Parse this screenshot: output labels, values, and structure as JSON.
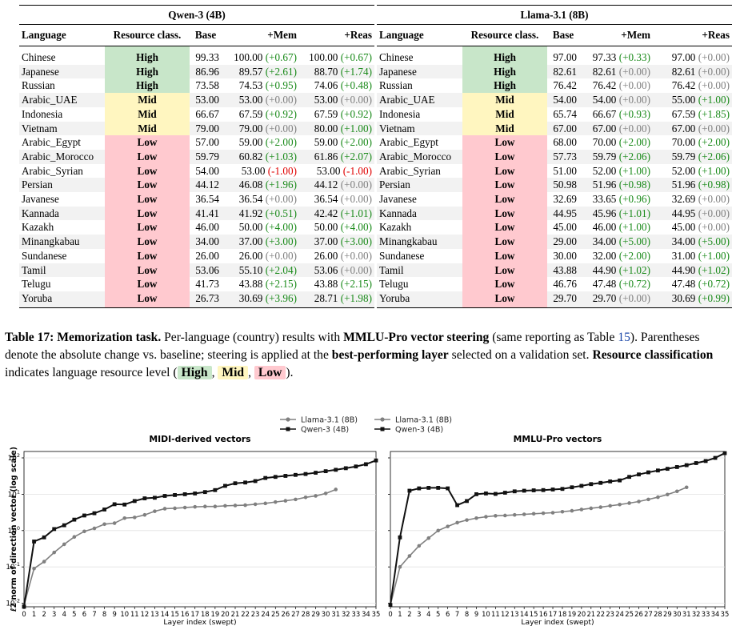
{
  "table": {
    "models": [
      "Qwen-3 (4B)",
      "Llama-3.1 (8B)"
    ],
    "headers": [
      "Language",
      "Resource class.",
      "Base",
      "+Mem",
      "+Reas"
    ],
    "colors": {
      "High": "#c8e6c9",
      "Mid": "#fff6c0",
      "Low": "#ffc9cf",
      "positive": "#1a8a1a",
      "negative": "#e00000",
      "zero": "#808080"
    },
    "rows": [
      {
        "lang": "Chinese",
        "res": "High",
        "q": [
          "99.33",
          "100.00",
          "(+0.67)",
          "100.00",
          "(+0.67)"
        ],
        "l": [
          "97.00",
          "97.33",
          "(+0.33)",
          "97.00",
          "(+0.00)"
        ]
      },
      {
        "lang": "Japanese",
        "res": "High",
        "q": [
          "86.96",
          "89.57",
          "(+2.61)",
          "88.70",
          "(+1.74)"
        ],
        "l": [
          "82.61",
          "82.61",
          "(+0.00)",
          "82.61",
          "(+0.00)"
        ]
      },
      {
        "lang": "Russian",
        "res": "High",
        "q": [
          "73.58",
          "74.53",
          "(+0.95)",
          "74.06",
          "(+0.48)"
        ],
        "l": [
          "76.42",
          "76.42",
          "(+0.00)",
          "76.42",
          "(+0.00)"
        ]
      },
      {
        "lang": "Arabic_UAE",
        "res": "Mid",
        "q": [
          "53.00",
          "53.00",
          "(+0.00)",
          "53.00",
          "(+0.00)"
        ],
        "l": [
          "54.00",
          "54.00",
          "(+0.00)",
          "55.00",
          "(+1.00)"
        ]
      },
      {
        "lang": "Indonesia",
        "res": "Mid",
        "q": [
          "66.67",
          "67.59",
          "(+0.92)",
          "67.59",
          "(+0.92)"
        ],
        "l": [
          "65.74",
          "66.67",
          "(+0.93)",
          "67.59",
          "(+1.85)"
        ]
      },
      {
        "lang": "Vietnam",
        "res": "Mid",
        "q": [
          "79.00",
          "79.00",
          "(+0.00)",
          "80.00",
          "(+1.00)"
        ],
        "l": [
          "67.00",
          "67.00",
          "(+0.00)",
          "67.00",
          "(+0.00)"
        ]
      },
      {
        "lang": "Arabic_Egypt",
        "res": "Low",
        "q": [
          "57.00",
          "59.00",
          "(+2.00)",
          "59.00",
          "(+2.00)"
        ],
        "l": [
          "68.00",
          "70.00",
          "(+2.00)",
          "70.00",
          "(+2.00)"
        ]
      },
      {
        "lang": "Arabic_Morocco",
        "res": "Low",
        "q": [
          "59.79",
          "60.82",
          "(+1.03)",
          "61.86",
          "(+2.07)"
        ],
        "l": [
          "57.73",
          "59.79",
          "(+2.06)",
          "59.79",
          "(+2.06)"
        ]
      },
      {
        "lang": "Arabic_Syrian",
        "res": "Low",
        "q": [
          "54.00",
          "53.00",
          "(-1.00)",
          "53.00",
          "(-1.00)"
        ],
        "l": [
          "51.00",
          "52.00",
          "(+1.00)",
          "52.00",
          "(+1.00)"
        ]
      },
      {
        "lang": "Persian",
        "res": "Low",
        "q": [
          "44.12",
          "46.08",
          "(+1.96)",
          "44.12",
          "(+0.00)"
        ],
        "l": [
          "50.98",
          "51.96",
          "(+0.98)",
          "51.96",
          "(+0.98)"
        ]
      },
      {
        "lang": "Javanese",
        "res": "Low",
        "q": [
          "36.54",
          "36.54",
          "(+0.00)",
          "36.54",
          "(+0.00)"
        ],
        "l": [
          "32.69",
          "33.65",
          "(+0.96)",
          "32.69",
          "(+0.00)"
        ]
      },
      {
        "lang": "Kannada",
        "res": "Low",
        "q": [
          "41.41",
          "41.92",
          "(+0.51)",
          "42.42",
          "(+1.01)"
        ],
        "l": [
          "44.95",
          "45.96",
          "(+1.01)",
          "44.95",
          "(+0.00)"
        ]
      },
      {
        "lang": "Kazakh",
        "res": "Low",
        "q": [
          "46.00",
          "50.00",
          "(+4.00)",
          "50.00",
          "(+4.00)"
        ],
        "l": [
          "45.00",
          "46.00",
          "(+1.00)",
          "45.00",
          "(+0.00)"
        ]
      },
      {
        "lang": "Minangkabau",
        "res": "Low",
        "q": [
          "34.00",
          "37.00",
          "(+3.00)",
          "37.00",
          "(+3.00)"
        ],
        "l": [
          "29.00",
          "34.00",
          "(+5.00)",
          "34.00",
          "(+5.00)"
        ]
      },
      {
        "lang": "Sundanese",
        "res": "Low",
        "q": [
          "26.00",
          "26.00",
          "(+0.00)",
          "26.00",
          "(+0.00)"
        ],
        "l": [
          "30.00",
          "32.00",
          "(+2.00)",
          "31.00",
          "(+1.00)"
        ]
      },
      {
        "lang": "Tamil",
        "res": "Low",
        "q": [
          "53.06",
          "55.10",
          "(+2.04)",
          "53.06",
          "(+0.00)"
        ],
        "l": [
          "43.88",
          "44.90",
          "(+1.02)",
          "44.90",
          "(+1.02)"
        ]
      },
      {
        "lang": "Telugu",
        "res": "Low",
        "q": [
          "41.73",
          "43.88",
          "(+2.15)",
          "43.88",
          "(+2.15)"
        ],
        "l": [
          "46.76",
          "47.48",
          "(+0.72)",
          "47.48",
          "(+0.72)"
        ]
      },
      {
        "lang": "Yoruba",
        "res": "Low",
        "q": [
          "26.73",
          "30.69",
          "(+3.96)",
          "28.71",
          "(+1.98)"
        ],
        "l": [
          "29.70",
          "29.70",
          "(+0.00)",
          "30.69",
          "(+0.99)"
        ]
      }
    ]
  },
  "caption": {
    "label": "Table 17:",
    "title": "Memorization task.",
    "t1": "Per-language (country) results with",
    "b1": "MMLU-Pro vector steering",
    "t2": "(same reporting as Table",
    "ref": "15",
    "t3": "). Parentheses denote the absolute change vs. baseline; steering is applied at the",
    "b2": "best-performing layer",
    "t4": "selected on a validation set.",
    "b3": "Resource classification",
    "t5": "indicates language resource level (",
    "badge_high": "High",
    "sep": ",",
    "badge_mid": "Mid",
    "badge_low": "Low",
    "t6": ")."
  },
  "chart_data": [
    {
      "type": "line",
      "title": "MIDI-derived vectors",
      "xlabel": "Layer index (swept)",
      "ylabel": "ℓ2 norm of direction vector (log scale)",
      "yscale": "log",
      "ylim": [
        0.008,
        150
      ],
      "grid": true,
      "legend_placement": "top (above plots)",
      "series": [
        {
          "name": "Llama-3.1 (8B)",
          "color": "#808080",
          "x": [
            0,
            1,
            2,
            3,
            4,
            5,
            6,
            7,
            8,
            9,
            10,
            11,
            12,
            13,
            14,
            15,
            16,
            17,
            18,
            19,
            20,
            21,
            22,
            23,
            24,
            25,
            26,
            27,
            28,
            29,
            30,
            31
          ],
          "values": [
            0.009,
            0.09,
            0.14,
            0.25,
            0.42,
            0.67,
            0.95,
            1.15,
            1.5,
            1.6,
            2.2,
            2.3,
            2.7,
            3.4,
            4.0,
            4.1,
            4.3,
            4.5,
            4.6,
            4.6,
            4.8,
            4.9,
            5.0,
            5.3,
            5.6,
            6.1,
            6.6,
            7.2,
            8.2,
            9.0,
            10.5,
            13.5
          ]
        },
        {
          "name": "Qwen-3 (4B)",
          "color": "#111111",
          "x": [
            0,
            1,
            2,
            3,
            4,
            5,
            6,
            7,
            8,
            9,
            10,
            11,
            12,
            13,
            14,
            15,
            16,
            17,
            18,
            19,
            20,
            21,
            22,
            23,
            24,
            25,
            26,
            27,
            28,
            29,
            30,
            31,
            32,
            33,
            34,
            35
          ],
          "values": [
            0.008,
            0.5,
            0.65,
            1.1,
            1.4,
            2.0,
            2.6,
            3.0,
            3.8,
            5.3,
            5.2,
            6.5,
            7.7,
            8.0,
            9.0,
            9.5,
            10.0,
            10.5,
            11.5,
            13.0,
            17.0,
            20.0,
            21.0,
            23.0,
            28.0,
            30.0,
            32.0,
            34.0,
            36.0,
            39.0,
            43.0,
            47.0,
            52.0,
            58.0,
            67.0,
            85.0
          ]
        }
      ]
    },
    {
      "type": "line",
      "title": "MMLU-Pro vectors",
      "xlabel": "Layer index (swept)",
      "ylabel": "",
      "yscale": "log",
      "ylim": [
        0.008,
        150
      ],
      "grid": true,
      "series": [
        {
          "name": "Llama-3.1 (8B)",
          "color": "#808080",
          "x": [
            0,
            1,
            2,
            3,
            4,
            5,
            6,
            7,
            8,
            9,
            10,
            11,
            12,
            13,
            14,
            15,
            16,
            17,
            18,
            19,
            20,
            21,
            22,
            23,
            24,
            25,
            26,
            27,
            28,
            29,
            30,
            31
          ],
          "values": [
            0.009,
            0.1,
            0.2,
            0.38,
            0.62,
            1.0,
            1.3,
            1.65,
            1.95,
            2.2,
            2.4,
            2.55,
            2.6,
            2.7,
            2.8,
            2.9,
            3.0,
            3.1,
            3.3,
            3.5,
            3.8,
            4.1,
            4.4,
            4.8,
            5.2,
            5.7,
            6.3,
            7.2,
            8.3,
            9.8,
            12.0,
            15.5
          ]
        },
        {
          "name": "Qwen-3 (4B)",
          "color": "#111111",
          "x": [
            0,
            1,
            2,
            3,
            4,
            5,
            6,
            7,
            8,
            9,
            10,
            11,
            12,
            13,
            14,
            15,
            16,
            17,
            18,
            19,
            20,
            21,
            22,
            23,
            24,
            25,
            26,
            27,
            28,
            29,
            30,
            31,
            32,
            33,
            34,
            35
          ],
          "values": [
            0.009,
            0.65,
            12.5,
            14.5,
            15.0,
            15.0,
            14.5,
            5.0,
            6.5,
            10.0,
            10.5,
            10.2,
            11.0,
            12.0,
            12.5,
            12.8,
            13.0,
            13.5,
            14.0,
            15.5,
            17.0,
            19.0,
            20.5,
            22.5,
            24.0,
            30.0,
            35.0,
            40.0,
            45.0,
            50.0,
            56.0,
            63.0,
            72.0,
            82.0,
            100.0,
            135.0
          ]
        }
      ]
    }
  ]
}
